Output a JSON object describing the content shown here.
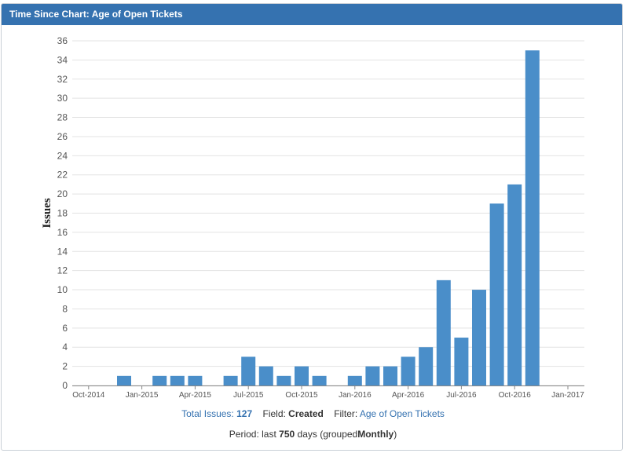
{
  "panel": {
    "title": "Time Since Chart: Age of Open Tickets"
  },
  "chart_data": {
    "type": "bar",
    "ylabel": "Issues",
    "ylim": [
      0,
      36
    ],
    "yticks": [
      0,
      2,
      4,
      6,
      8,
      10,
      12,
      14,
      16,
      18,
      20,
      22,
      24,
      26,
      28,
      30,
      32,
      34,
      36
    ],
    "xticks": [
      "Oct-2014",
      "Jan-2015",
      "Apr-2015",
      "Jul-2015",
      "Oct-2015",
      "Jan-2016",
      "Apr-2016",
      "Jul-2016",
      "Oct-2016",
      "Jan-2017"
    ],
    "grid": true,
    "color": "#4a8ec9",
    "categories": [
      "2014-11",
      "2014-12",
      "2015-01",
      "2015-02",
      "2015-03",
      "2015-04",
      "2015-05",
      "2015-06",
      "2015-07",
      "2015-08",
      "2015-09",
      "2015-10",
      "2015-11",
      "2015-12",
      "2016-01",
      "2016-02",
      "2016-03",
      "2016-04",
      "2016-05",
      "2016-06",
      "2016-07",
      "2016-08",
      "2016-09",
      "2016-10",
      "2016-11",
      "2016-12"
    ],
    "values": [
      0,
      1,
      0,
      1,
      1,
      1,
      0,
      1,
      3,
      2,
      1,
      2,
      1,
      0,
      1,
      2,
      2,
      3,
      4,
      11,
      5,
      10,
      19,
      21,
      35,
      0
    ]
  },
  "stats": {
    "total_label": "Total Issues:",
    "total_value": "127",
    "field_label": "Field:",
    "field_value": "Created",
    "filter_label": "Filter:",
    "filter_value": "Age of Open Tickets"
  },
  "period": {
    "prefix": "Period: last",
    "days": "750",
    "middle": "days (grouped",
    "group": "Monthly",
    "suffix": ")"
  }
}
